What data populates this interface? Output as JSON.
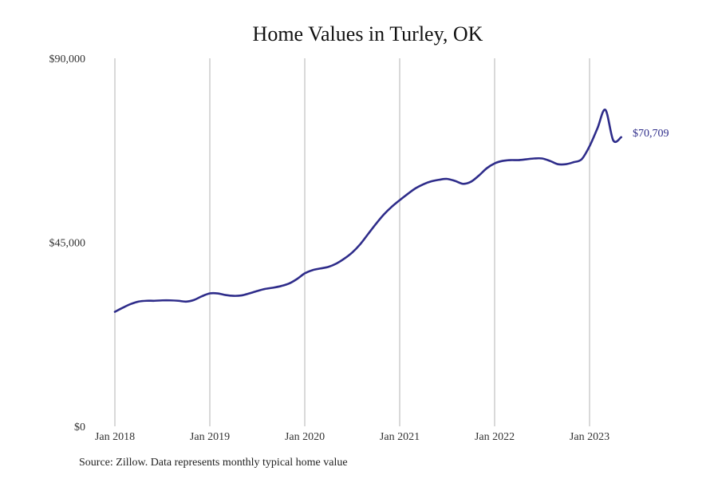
{
  "chart_data": {
    "type": "line",
    "title": "Home Values in Turley, OK",
    "xlabel": "",
    "ylabel": "",
    "x_ticks": [
      "Jan 2018",
      "Jan 2019",
      "Jan 2020",
      "Jan 2021",
      "Jan 2022",
      "Jan 2023"
    ],
    "y_ticks": [
      "$0",
      "$45,000",
      "$90,000"
    ],
    "ylim": [
      0,
      90000
    ],
    "xlim": [
      "2018-01",
      "2023-05"
    ],
    "grid": "vertical",
    "line_color": "#2e2c8a",
    "end_label": "$70,709",
    "series": [
      {
        "x": [
          "2018-01",
          "2018-02",
          "2018-03",
          "2018-04",
          "2018-05",
          "2018-06",
          "2018-07",
          "2018-08",
          "2018-09",
          "2018-10",
          "2018-11",
          "2018-12",
          "2019-01",
          "2019-02",
          "2019-03",
          "2019-04",
          "2019-05",
          "2019-06",
          "2019-07",
          "2019-08",
          "2019-09",
          "2019-10",
          "2019-11",
          "2019-12",
          "2020-01",
          "2020-02",
          "2020-03",
          "2020-04",
          "2020-05",
          "2020-06",
          "2020-07",
          "2020-08",
          "2020-09",
          "2020-10",
          "2020-11",
          "2020-12",
          "2021-01",
          "2021-02",
          "2021-03",
          "2021-04",
          "2021-05",
          "2021-06",
          "2021-07",
          "2021-08",
          "2021-09",
          "2021-10",
          "2021-11",
          "2021-12",
          "2022-01",
          "2022-02",
          "2022-03",
          "2022-04",
          "2022-05",
          "2022-06",
          "2022-07",
          "2022-08",
          "2022-09",
          "2022-10",
          "2022-11",
          "2022-12",
          "2023-01",
          "2023-02",
          "2023-03",
          "2023-04",
          "2023-05"
        ],
        "values": [
          28000,
          29000,
          29900,
          30500,
          30700,
          30700,
          30800,
          30800,
          30700,
          30500,
          30900,
          31800,
          32500,
          32500,
          32100,
          31900,
          32000,
          32500,
          33100,
          33600,
          33900,
          34300,
          34900,
          36000,
          37400,
          38200,
          38600,
          39000,
          39800,
          41000,
          42500,
          44500,
          47000,
          49500,
          51800,
          53700,
          55300,
          56800,
          58200,
          59200,
          59900,
          60300,
          60500,
          60000,
          59300,
          59800,
          61300,
          63100,
          64300,
          64900,
          65100,
          65100,
          65300,
          65500,
          65500,
          64900,
          64100,
          64100,
          64600,
          65300,
          68500,
          72900,
          77400,
          69900,
          70709
        ]
      }
    ]
  },
  "source": "Source: Zillow. Data represents monthly typical home value"
}
